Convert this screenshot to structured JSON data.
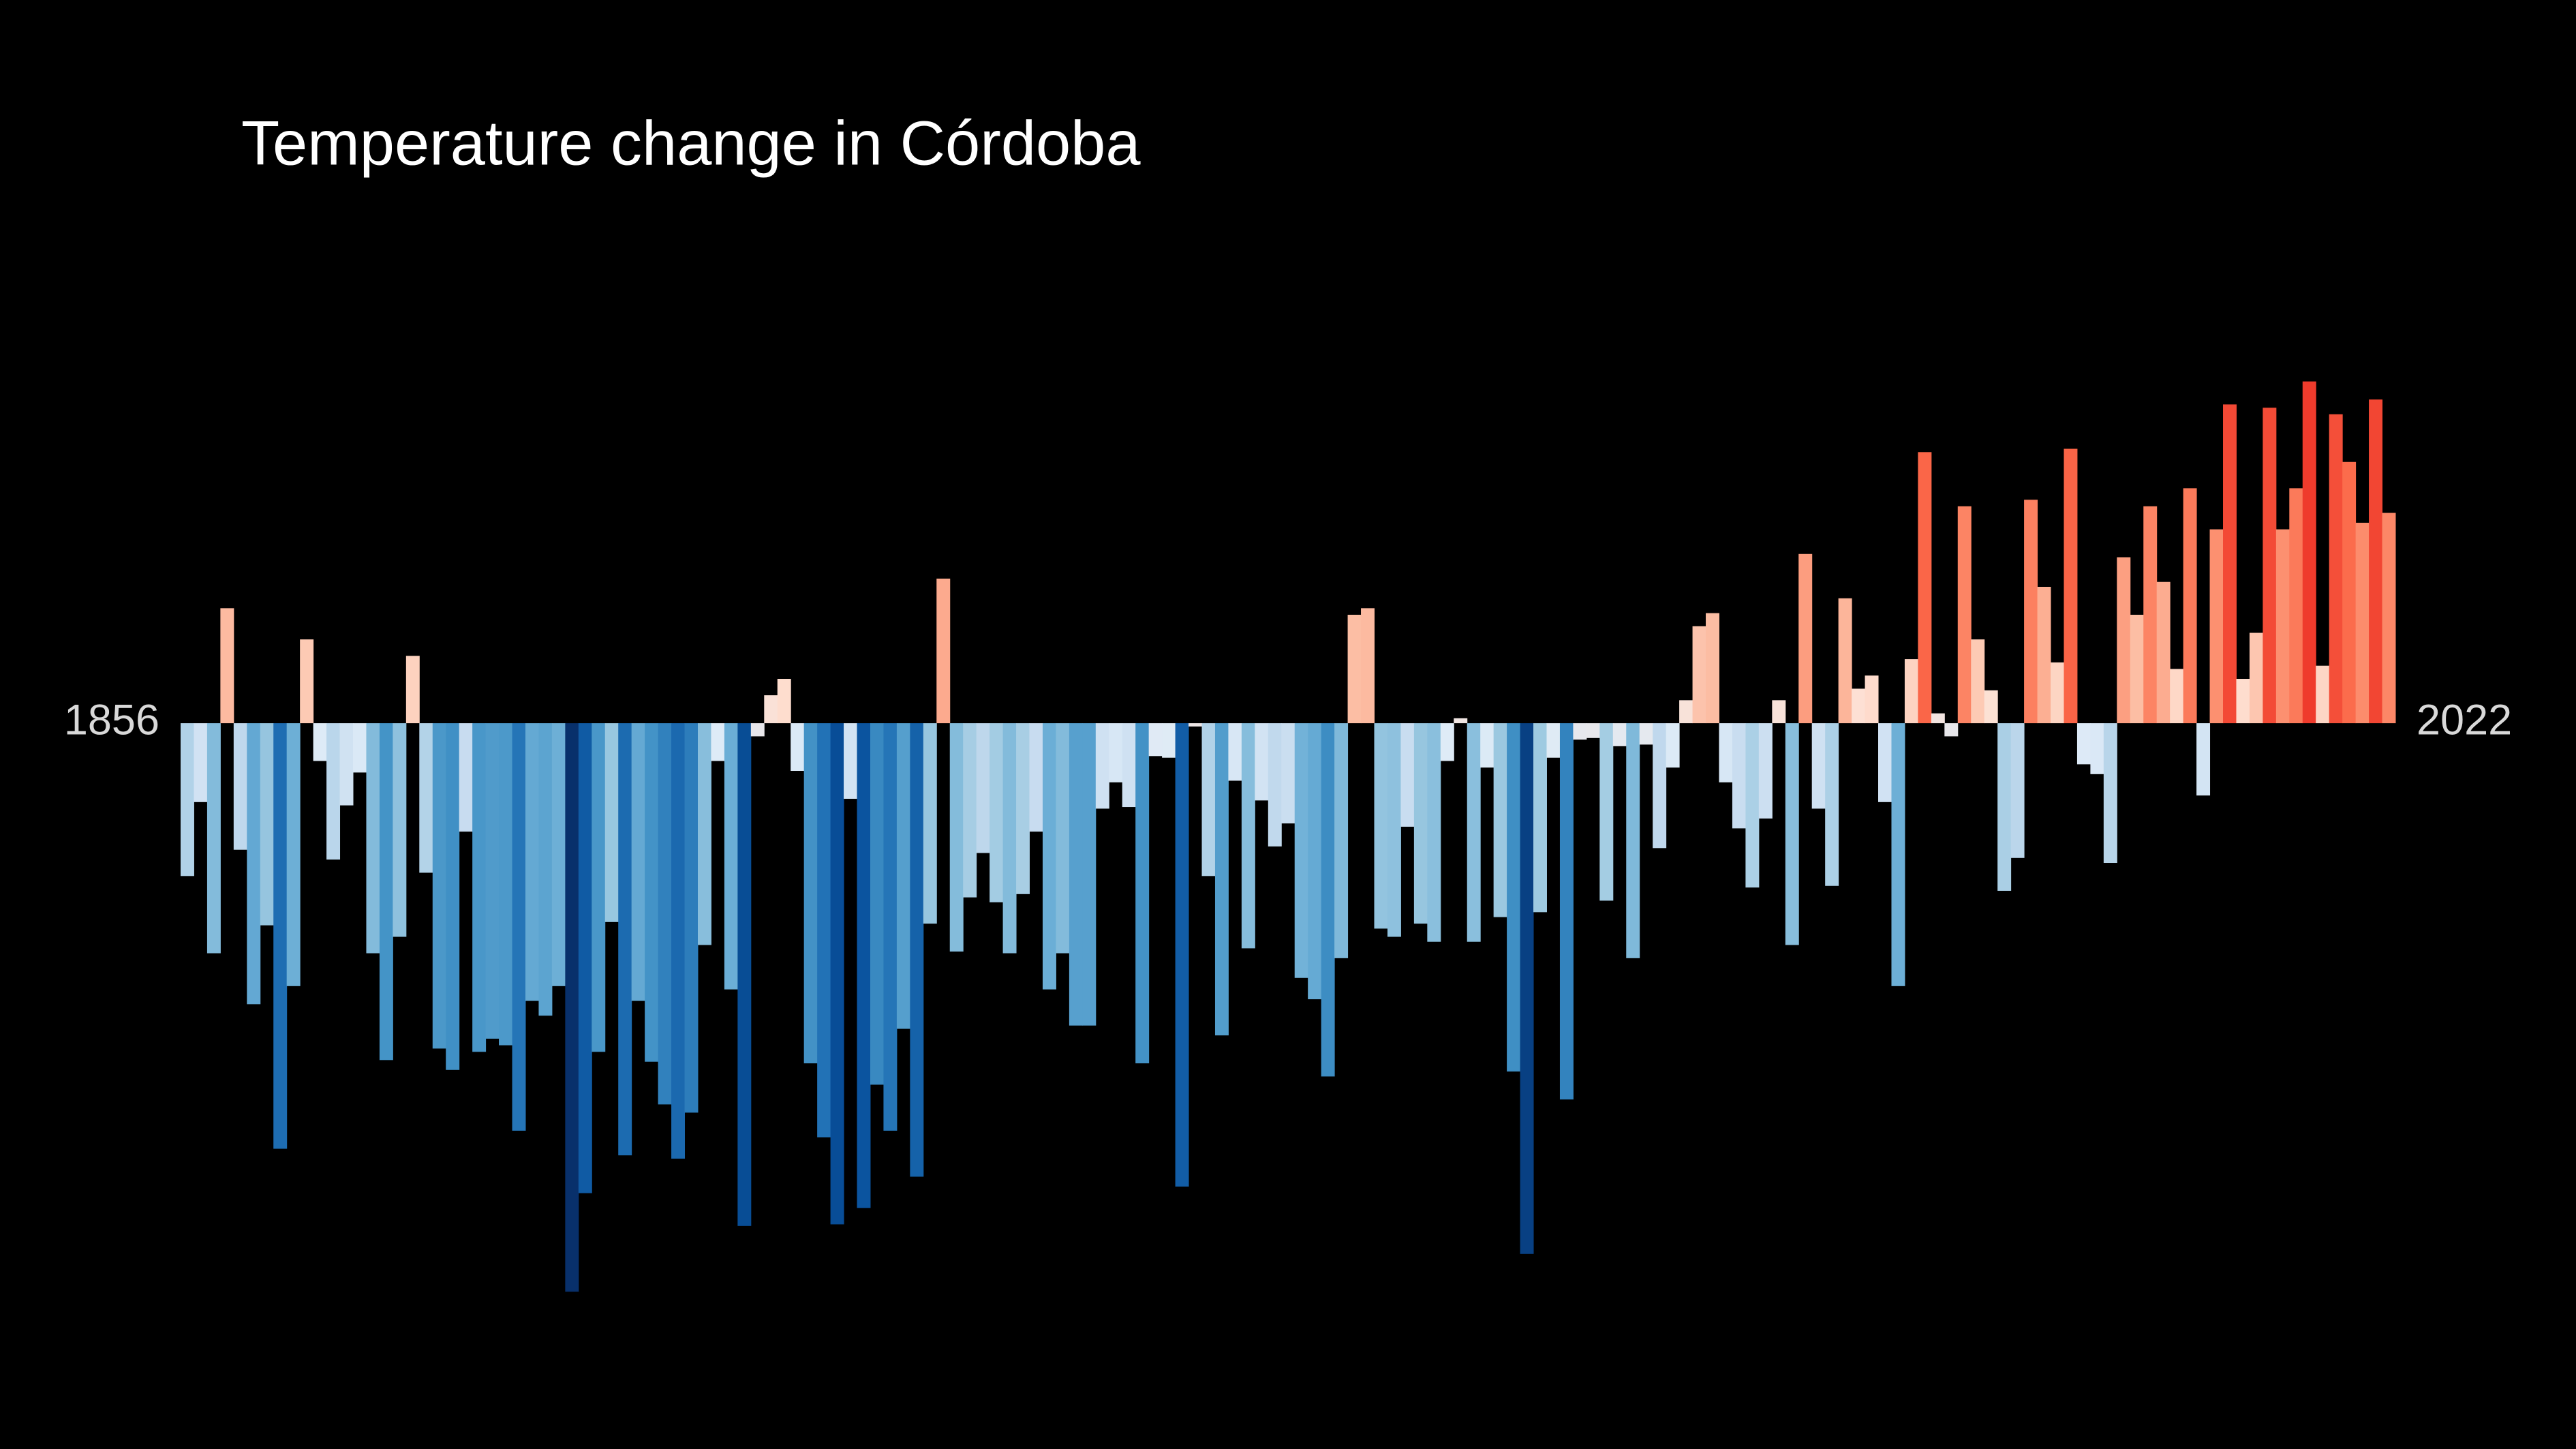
{
  "chart_data": {
    "type": "bar",
    "title": "Temperature change in Córdoba",
    "xlim": [
      1856,
      2022
    ],
    "xticks": [
      1856,
      2022
    ],
    "ylim": [
      -3.6,
      2.4
    ],
    "colormap": [
      "#08306b",
      "#08519c",
      "#2171b5",
      "#4292c6",
      "#6baed6",
      "#9ecae1",
      "#c6dbef",
      "#deebf7",
      "#fee0d2",
      "#fcbba1",
      "#fc9272",
      "#fb6a4a",
      "#ef3b2c",
      "#cb181d",
      "#a50f15",
      "#67000d"
    ],
    "x": [
      1856,
      1857,
      1858,
      1859,
      1860,
      1861,
      1862,
      1863,
      1864,
      1865,
      1866,
      1867,
      1868,
      1869,
      1870,
      1871,
      1872,
      1873,
      1874,
      1875,
      1876,
      1877,
      1878,
      1879,
      1880,
      1881,
      1882,
      1883,
      1884,
      1885,
      1886,
      1887,
      1888,
      1889,
      1890,
      1891,
      1892,
      1893,
      1894,
      1895,
      1896,
      1897,
      1898,
      1899,
      1900,
      1901,
      1902,
      1903,
      1904,
      1905,
      1906,
      1907,
      1908,
      1909,
      1910,
      1911,
      1912,
      1913,
      1914,
      1915,
      1916,
      1917,
      1918,
      1919,
      1920,
      1921,
      1922,
      1923,
      1924,
      1925,
      1926,
      1927,
      1928,
      1929,
      1930,
      1931,
      1932,
      1933,
      1934,
      1935,
      1936,
      1937,
      1938,
      1939,
      1940,
      1941,
      1942,
      1943,
      1944,
      1945,
      1946,
      1947,
      1948,
      1949,
      1950,
      1951,
      1952,
      1953,
      1954,
      1955,
      1956,
      1957,
      1958,
      1959,
      1960,
      1961,
      1962,
      1963,
      1964,
      1965,
      1966,
      1967,
      1968,
      1969,
      1970,
      1971,
      1972,
      1973,
      1974,
      1975,
      1976,
      1977,
      1978,
      1979,
      1980,
      1981,
      1982,
      1983,
      1984,
      1985,
      1986,
      1987,
      1988,
      1989,
      1990,
      1991,
      1992,
      1993,
      1994,
      1995,
      1996,
      1997,
      1998,
      1999,
      2000,
      2001,
      2002,
      2003,
      2004,
      2005,
      2006,
      2007,
      2008,
      2009,
      2010,
      2011,
      2012,
      2013,
      2014,
      2015,
      2016,
      2017,
      2018,
      2019,
      2020,
      2021,
      2022
    ],
    "values": [
      -0.93,
      -0.48,
      -1.4,
      0.7,
      -0.77,
      -1.71,
      -1.23,
      -2.59,
      -1.6,
      0.51,
      -0.23,
      -0.83,
      -0.5,
      -0.3,
      -1.4,
      -2.05,
      -1.3,
      0.41,
      -0.91,
      -1.98,
      -2.11,
      -0.66,
      -2.0,
      -1.92,
      -1.96,
      -2.48,
      -1.69,
      -1.78,
      -1.6,
      -3.46,
      -2.86,
      -2.0,
      -1.21,
      -2.63,
      -1.69,
      -2.06,
      -2.32,
      -2.65,
      -2.37,
      -1.35,
      -0.23,
      -1.62,
      -3.06,
      -0.08,
      0.17,
      0.27,
      -0.29,
      -2.07,
      -2.52,
      -3.05,
      -0.46,
      -2.95,
      -2.2,
      -2.48,
      -1.86,
      -2.76,
      -1.22,
      0.88,
      -1.39,
      -1.06,
      -0.79,
      -1.09,
      -1.4,
      -1.04,
      -0.66,
      -1.62,
      -1.4,
      -1.84,
      -1.84,
      -0.52,
      -0.36,
      -0.51,
      -2.07,
      -0.2,
      -0.21,
      -2.82,
      -0.02,
      -0.93,
      -1.9,
      -0.35,
      -1.37,
      -0.47,
      -0.75,
      -0.61,
      -1.55,
      -1.68,
      -2.15,
      -1.43,
      0.66,
      0.7,
      -1.25,
      -1.3,
      -0.63,
      -1.22,
      -1.33,
      -0.23,
      0.03,
      -1.33,
      -0.27,
      -1.18,
      -2.12,
      -3.23,
      -1.15,
      -0.21,
      -2.29,
      -0.1,
      -0.09,
      -1.08,
      -0.14,
      -1.43,
      -0.13,
      -0.76,
      -0.27,
      0.14,
      0.59,
      0.67,
      -0.36,
      -0.64,
      -1.0,
      -0.58,
      0.14,
      -1.35,
      1.03,
      -0.52,
      -0.99,
      0.76,
      0.21,
      0.29,
      -0.48,
      -1.6,
      0.39,
      1.65,
      0.06,
      -0.08,
      1.32,
      0.51,
      0.2,
      -1.02,
      -0.82,
      1.36,
      0.83,
      0.37,
      1.67,
      -0.25,
      -0.31,
      -0.85,
      1.01,
      0.66,
      1.32,
      0.86,
      0.33,
      1.43,
      -0.44,
      1.18,
      1.94,
      0.27,
      0.55,
      1.92,
      1.18,
      1.43,
      2.08,
      0.35,
      1.88,
      1.59,
      1.22,
      1.97,
      1.28
    ]
  }
}
